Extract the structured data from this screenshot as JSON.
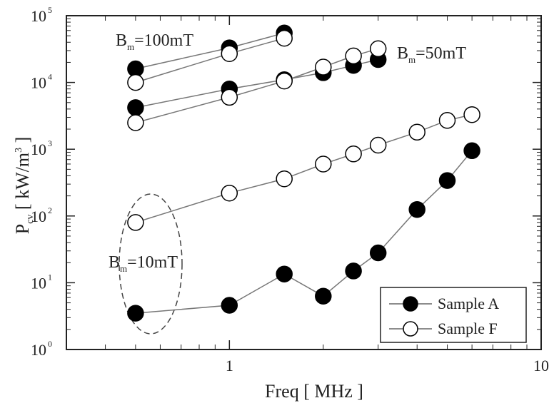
{
  "chart_data": {
    "type": "scatter",
    "xlabel": "Freq [ MHz ]",
    "ylabel": "P",
    "ylabel_sub": "cv",
    "ylabel_unit": " [ kW/m",
    "ylabel_unit_sup": "3",
    "ylabel_unit_end": " ]",
    "x_scale": "log",
    "y_scale": "log",
    "xlim": [
      0.3,
      10
    ],
    "ylim": [
      1,
      100000
    ],
    "x_ticks": [
      {
        "value": 1,
        "label": "1"
      },
      {
        "value": 10,
        "label": "10"
      }
    ],
    "y_ticks": [
      {
        "value": 1,
        "base": "10",
        "exp": "0"
      },
      {
        "value": 10,
        "base": "10",
        "exp": "1"
      },
      {
        "value": 100,
        "base": "10",
        "exp": "2"
      },
      {
        "value": 1000,
        "base": "10",
        "exp": "3"
      },
      {
        "value": 10000,
        "base": "10",
        "exp": "4"
      },
      {
        "value": 100000,
        "base": "10",
        "exp": "5"
      }
    ],
    "series": [
      {
        "name": "Sample A",
        "marker": "filled",
        "group": "10mT",
        "x": [
          0.5,
          1.0,
          1.5,
          2.0,
          2.5,
          3.0,
          4.0,
          5.0,
          6.0
        ],
        "y": [
          3.5,
          4.6,
          13.5,
          6.3,
          15,
          28,
          125,
          340,
          950
        ]
      },
      {
        "name": "Sample F",
        "marker": "open",
        "group": "10mT",
        "x": [
          0.5,
          1.0,
          1.5,
          2.0,
          2.5,
          3.0,
          4.0,
          5.0,
          6.0
        ],
        "y": [
          80,
          220,
          360,
          600,
          850,
          1150,
          1800,
          2700,
          3300
        ]
      },
      {
        "name": "Sample A",
        "marker": "filled",
        "group": "50mT",
        "x": [
          0.5,
          1.0,
          1.5,
          2.0,
          2.5,
          3.0
        ],
        "y": [
          4200,
          8000,
          11000,
          14000,
          18000,
          22000
        ]
      },
      {
        "name": "Sample F",
        "marker": "open",
        "group": "50mT",
        "x": [
          0.5,
          1.0,
          1.5,
          2.0,
          2.5,
          3.0
        ],
        "y": [
          2500,
          6000,
          10500,
          17000,
          25000,
          32000
        ]
      },
      {
        "name": "Sample A",
        "marker": "filled",
        "group": "100mT",
        "x": [
          0.5,
          1.0,
          1.5
        ],
        "y": [
          16000,
          33000,
          55000
        ]
      },
      {
        "name": "Sample F",
        "marker": "open",
        "group": "100mT",
        "x": [
          0.5,
          1.0,
          1.5
        ],
        "y": [
          10000,
          27000,
          46000
        ]
      }
    ],
    "annotations": [
      {
        "B": "B",
        "sub": "m",
        "value": "=100mT"
      },
      {
        "B": "B",
        "sub": "m",
        "value": "=50mT"
      },
      {
        "B": "B",
        "sub": "m",
        "value": "=10mT"
      }
    ],
    "legend": {
      "placement": "bottom-right",
      "entries": [
        {
          "label": "Sample A",
          "marker": "filled"
        },
        {
          "label": "Sample F",
          "marker": "open"
        }
      ]
    },
    "grid": false
  }
}
